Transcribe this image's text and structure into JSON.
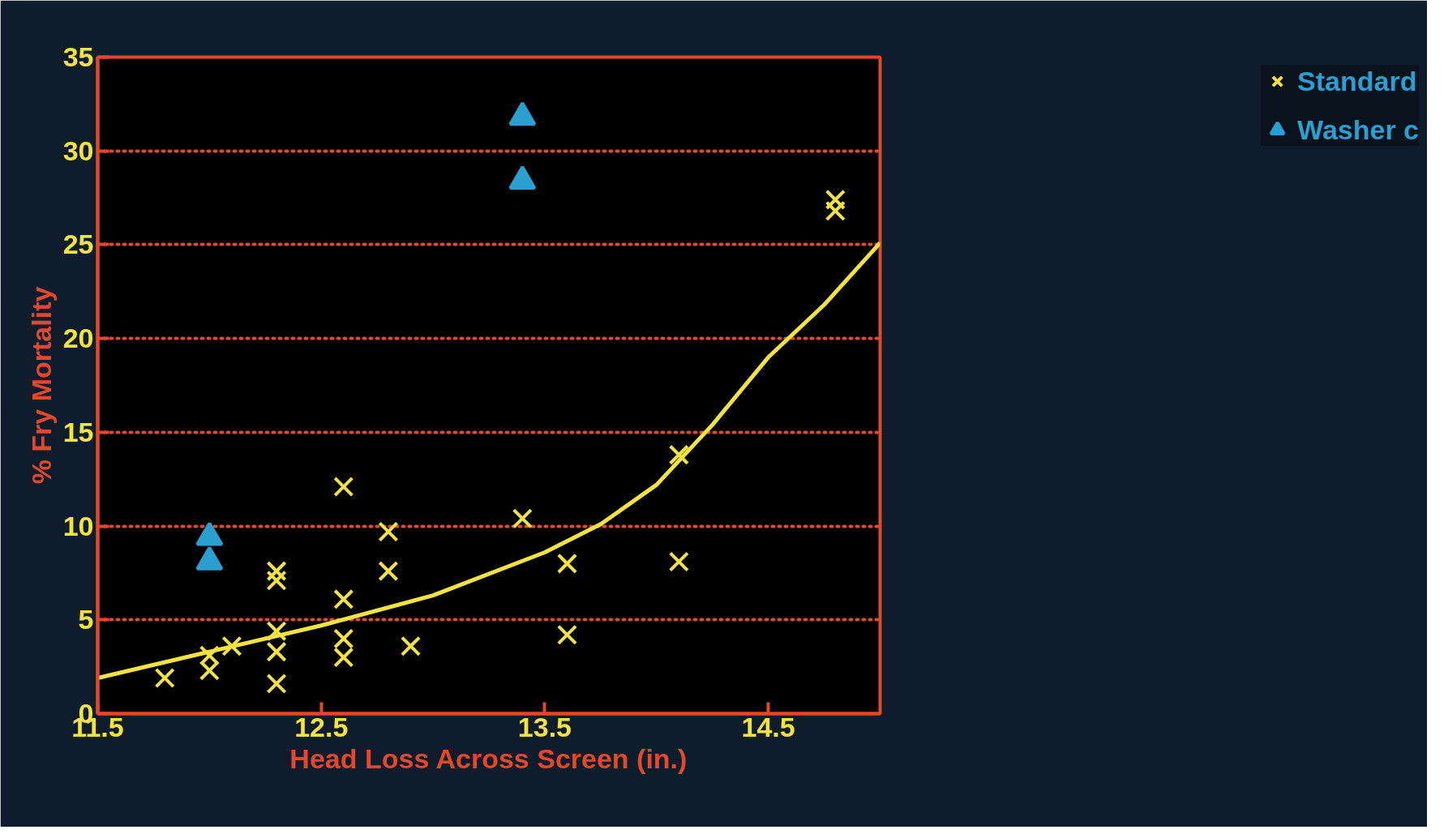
{
  "chart_data": {
    "type": "scatter",
    "xlabel": "Head Loss Across Screen (in.)",
    "ylabel": "% Fry Mortality",
    "xlim": [
      11.5,
      15.0
    ],
    "ylim": [
      0,
      35
    ],
    "xticks": [
      11.5,
      12.5,
      13.5,
      14.5
    ],
    "yticks": [
      0,
      5,
      10,
      15,
      20,
      25,
      30,
      35
    ],
    "grid": "y",
    "legend": "top right",
    "series": [
      {
        "name": "Standard",
        "color": "#f2e341",
        "marker": "cross",
        "x": [
          11.8,
          12.0,
          12.0,
          12.1,
          12.3,
          12.3,
          12.3,
          12.3,
          12.3,
          12.6,
          12.6,
          12.6,
          12.6,
          12.8,
          12.8,
          12.9,
          13.4,
          13.6,
          13.6,
          14.1,
          14.1,
          14.8,
          14.8
        ],
        "values": [
          1.9,
          3.1,
          2.3,
          3.6,
          4.4,
          3.3,
          1.6,
          7.6,
          7.1,
          12.1,
          6.1,
          4.0,
          3.0,
          9.7,
          7.6,
          3.6,
          10.4,
          8.0,
          4.2,
          13.8,
          8.1,
          27.4,
          26.8
        ]
      },
      {
        "name": "Washer c",
        "color": "#2a9fd0",
        "marker": "triangle",
        "x": [
          12.0,
          12.0,
          13.4,
          13.4
        ],
        "values": [
          9.4,
          8.1,
          31.8,
          28.4
        ]
      },
      {
        "type": "line",
        "color": "#f2e341",
        "marker": "none",
        "line_style": "solid",
        "x": [
          11.5,
          12.0,
          12.5,
          13.0,
          13.5,
          13.75,
          14.0,
          14.25,
          14.5,
          14.75,
          15.0
        ],
        "values": [
          1.9,
          3.3,
          4.7,
          6.3,
          8.6,
          10.1,
          12.2,
          15.4,
          19.0,
          21.8,
          25.1
        ]
      }
    ]
  }
}
